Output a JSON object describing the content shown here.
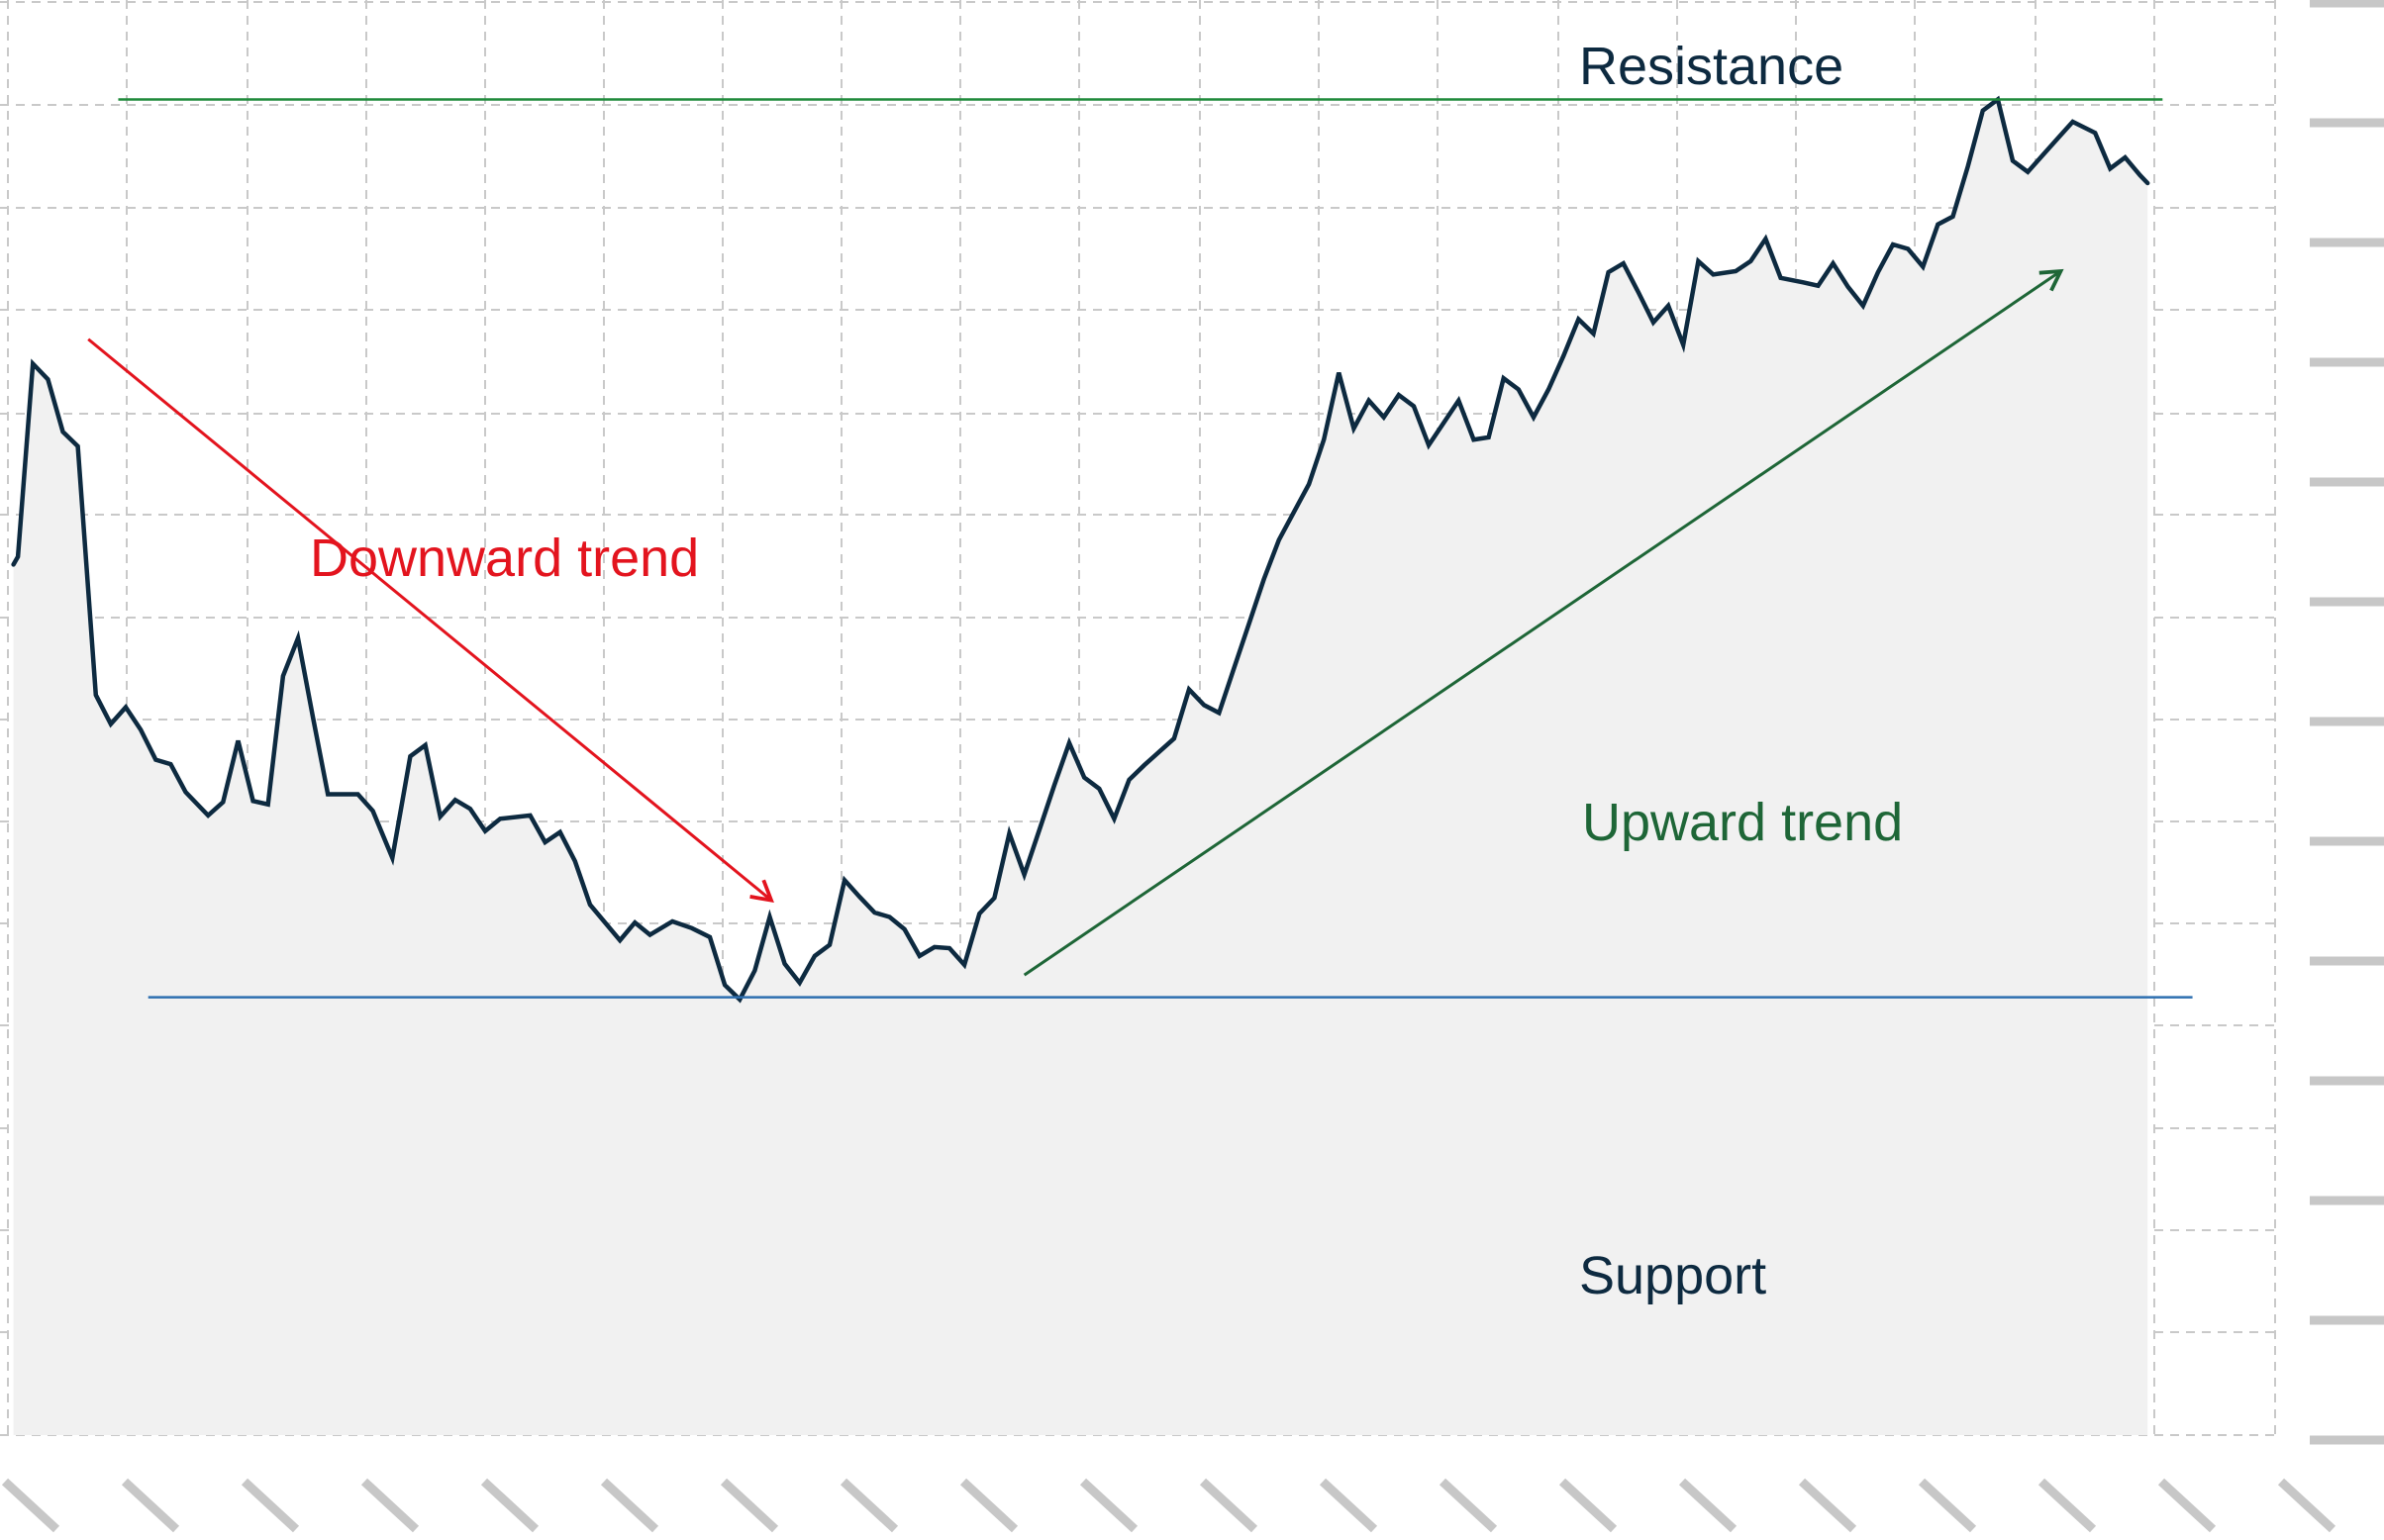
{
  "chart_data": {
    "type": "line",
    "title": "",
    "xlabel": "",
    "ylabel": "",
    "xlim": [
      0,
      1500
    ],
    "ylim": [
      0,
      1000
    ],
    "grid": true,
    "series": [
      {
        "values": [
          [
            5,
            588
          ],
          [
            8,
            595
          ],
          [
            18,
            768
          ],
          [
            28,
            754
          ],
          [
            38,
            707
          ],
          [
            48,
            694
          ],
          [
            60,
            471
          ],
          [
            70,
            445
          ],
          [
            80,
            460
          ],
          [
            90,
            440
          ],
          [
            100,
            413
          ],
          [
            110,
            409
          ],
          [
            120,
            384
          ],
          [
            135,
            363
          ],
          [
            145,
            375
          ],
          [
            155,
            430
          ],
          [
            165,
            376
          ],
          [
            175,
            373
          ],
          [
            185,
            488
          ],
          [
            195,
            522
          ],
          [
            205,
            451
          ],
          [
            215,
            382
          ],
          [
            235,
            382
          ],
          [
            245,
            367
          ],
          [
            258,
            325
          ],
          [
            270,
            416
          ],
          [
            280,
            426
          ],
          [
            290,
            362
          ],
          [
            300,
            377
          ],
          [
            310,
            369
          ],
          [
            320,
            349
          ],
          [
            330,
            360
          ],
          [
            350,
            363
          ],
          [
            360,
            339
          ],
          [
            370,
            348
          ],
          [
            380,
            322
          ],
          [
            390,
            283
          ],
          [
            410,
            251
          ],
          [
            420,
            267
          ],
          [
            430,
            256
          ],
          [
            445,
            268
          ],
          [
            458,
            262
          ],
          [
            470,
            254
          ],
          [
            480,
            211
          ],
          [
            490,
            198
          ],
          [
            500,
            224
          ],
          [
            510,
            272
          ],
          [
            520,
            230
          ],
          [
            530,
            213
          ],
          [
            540,
            237
          ],
          [
            550,
            247
          ],
          [
            560,
            305
          ],
          [
            570,
            290
          ],
          [
            580,
            276
          ],
          [
            590,
            272
          ],
          [
            600,
            261
          ],
          [
            610,
            237
          ],
          [
            620,
            245
          ],
          [
            630,
            244
          ],
          [
            640,
            229
          ],
          [
            650,
            275
          ],
          [
            660,
            289
          ],
          [
            670,
            347
          ],
          [
            680,
            310
          ],
          [
            690,
            350
          ],
          [
            700,
            390
          ],
          [
            710,
            428
          ],
          [
            720,
            397
          ],
          [
            730,
            387
          ],
          [
            740,
            360
          ],
          [
            750,
            395
          ],
          [
            760,
            408
          ],
          [
            770,
            420
          ],
          [
            780,
            432
          ],
          [
            790,
            476
          ],
          [
            800,
            462
          ],
          [
            810,
            455
          ],
          [
            820,
            495
          ],
          [
            830,
            535
          ],
          [
            840,
            575
          ],
          [
            850,
            610
          ],
          [
            860,
            635
          ],
          [
            870,
            660
          ],
          [
            880,
            700
          ],
          [
            890,
            760
          ],
          [
            900,
            710
          ],
          [
            910,
            735
          ],
          [
            920,
            720
          ],
          [
            930,
            740
          ],
          [
            940,
            730
          ],
          [
            950,
            695
          ],
          [
            960,
            715
          ],
          [
            970,
            735
          ],
          [
            980,
            700
          ],
          [
            990,
            702
          ],
          [
            1000,
            755
          ],
          [
            1010,
            745
          ],
          [
            1020,
            720
          ],
          [
            1030,
            745
          ],
          [
            1040,
            775
          ],
          [
            1050,
            808
          ],
          [
            1060,
            795
          ],
          [
            1070,
            850
          ],
          [
            1080,
            858
          ],
          [
            1090,
            832
          ],
          [
            1100,
            805
          ],
          [
            1110,
            820
          ],
          [
            1120,
            785
          ],
          [
            1130,
            860
          ],
          [
            1140,
            848
          ],
          [
            1155,
            851
          ],
          [
            1165,
            860
          ],
          [
            1175,
            880
          ],
          [
            1185,
            845
          ],
          [
            1200,
            841
          ],
          [
            1210,
            838
          ],
          [
            1220,
            858
          ],
          [
            1230,
            837
          ],
          [
            1240,
            820
          ],
          [
            1250,
            850
          ],
          [
            1260,
            875
          ],
          [
            1270,
            871
          ],
          [
            1280,
            855
          ],
          [
            1290,
            893
          ],
          [
            1300,
            900
          ],
          [
            1310,
            945
          ],
          [
            1320,
            995
          ],
          [
            1330,
            1005
          ],
          [
            1340,
            950
          ],
          [
            1350,
            940
          ],
          [
            1360,
            955
          ],
          [
            1370,
            970
          ],
          [
            1380,
            985
          ],
          [
            1395,
            975
          ],
          [
            1405,
            943
          ],
          [
            1415,
            953
          ],
          [
            1425,
            937
          ],
          [
            1430,
            930
          ]
        ]
      }
    ],
    "support": {
      "label": "Support",
      "y": 200,
      "x_range": [
        95,
        1460
      ],
      "color": "#2e6fb0"
    },
    "resistance": {
      "label": "Resistance",
      "y": 1005,
      "x_range": [
        75,
        1440
      ],
      "color": "#1f8a3a"
    },
    "downward_trend": {
      "label": "Downward trend",
      "from": [
        55,
        790
      ],
      "to": [
        511,
        287
      ],
      "color": "#e3141e"
    },
    "upward_trend": {
      "label": "Upward trend",
      "from": [
        680,
        220
      ],
      "to": [
        1372,
        851
      ],
      "color": "#1e6637"
    },
    "colors": {
      "line": "#0d2a40",
      "area": "#f1f1f1",
      "grid": "#c9c9c9",
      "ticks": "#c7c7c7"
    },
    "labels": {
      "resistance": "Resistance",
      "downward": "Downward trend",
      "upward": "Upward trend",
      "support": "Support"
    }
  }
}
